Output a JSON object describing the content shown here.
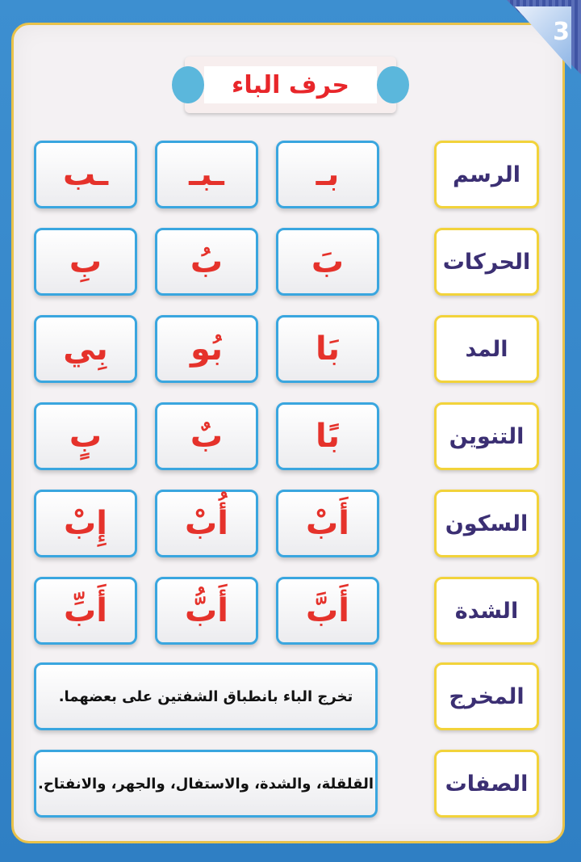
{
  "page_number": "3",
  "title": "حرف الباء",
  "rows": [
    {
      "label": "الرسم",
      "cells": [
        "بـ",
        "ـبـ",
        "ـب"
      ]
    },
    {
      "label": "الحركات",
      "cells": [
        "بَ",
        "بُ",
        "بِ"
      ]
    },
    {
      "label": "المد",
      "cells": [
        "بَا",
        "بُو",
        "بِي"
      ]
    },
    {
      "label": "التنوين",
      "cells": [
        "بًا",
        "بٌ",
        "بٍ"
      ]
    },
    {
      "label": "السكون",
      "cells": [
        "أَبْ",
        "أُبْ",
        "إِبْ"
      ]
    },
    {
      "label": "الشدة",
      "cells": [
        "أَبَّ",
        "أَبُّ",
        "أَبِّ"
      ]
    }
  ],
  "makhraj": {
    "label": "المخرج",
    "text": "تخرج الباء بانطباق الشفتين على بعضهما."
  },
  "sifat": {
    "label": "الصفات",
    "text": "القلقلة، والشدة، والاستفال، والجهر، والانفتاح."
  },
  "colors": {
    "letter": "#e5322b",
    "label_text": "#3b2f73",
    "label_border": "#f2d33b",
    "card_border": "#3aa6df",
    "background": "#3d8fd0"
  }
}
